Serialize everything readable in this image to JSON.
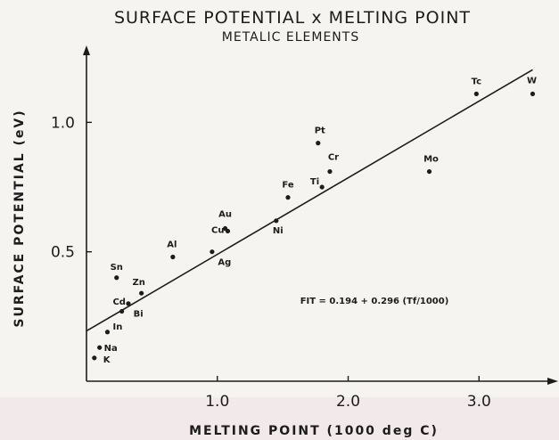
{
  "chart_data": {
    "type": "scatter",
    "title": "SURFACE POTENTIAL x MELTING POINT",
    "subtitle": "METALIC ELEMENTS",
    "xlabel": "MELTING POINT (1000 deg C)",
    "ylabel": "SURFACE POTENTIAL (eV)",
    "xlim": [
      0.0,
      3.55
    ],
    "ylim": [
      0.0,
      1.28
    ],
    "x_ticks": [
      {
        "value": 1.0,
        "label": "1.0"
      },
      {
        "value": 2.0,
        "label": "2.0"
      },
      {
        "value": 3.0,
        "label": "3.0"
      }
    ],
    "y_ticks": [
      {
        "value": 0.5,
        "label": "0.5"
      },
      {
        "value": 1.0,
        "label": "1.0"
      }
    ],
    "grid": false,
    "points": [
      {
        "label": "K",
        "x": 0.06,
        "y": 0.09
      },
      {
        "label": "Na",
        "x": 0.1,
        "y": 0.13
      },
      {
        "label": "In",
        "x": 0.16,
        "y": 0.19
      },
      {
        "label": "Sn",
        "x": 0.23,
        "y": 0.4
      },
      {
        "label": "Cd",
        "x": 0.32,
        "y": 0.3
      },
      {
        "label": "Bi",
        "x": 0.27,
        "y": 0.27
      },
      {
        "label": "Zn",
        "x": 0.42,
        "y": 0.34
      },
      {
        "label": "Al",
        "x": 0.66,
        "y": 0.48
      },
      {
        "label": "Ag",
        "x": 0.96,
        "y": 0.5
      },
      {
        "label": "Au",
        "x": 1.06,
        "y": 0.59
      },
      {
        "label": "Cu",
        "x": 1.08,
        "y": 0.58
      },
      {
        "label": "Ni",
        "x": 1.45,
        "y": 0.62
      },
      {
        "label": "Fe",
        "x": 1.54,
        "y": 0.71
      },
      {
        "label": "Pt",
        "x": 1.77,
        "y": 0.92
      },
      {
        "label": "Ti",
        "x": 1.8,
        "y": 0.75
      },
      {
        "label": "Cr",
        "x": 1.86,
        "y": 0.81
      },
      {
        "label": "Mo",
        "x": 2.62,
        "y": 0.81
      },
      {
        "label": "Tc",
        "x": 2.98,
        "y": 1.11
      },
      {
        "label": "W",
        "x": 3.41,
        "y": 1.11
      }
    ],
    "fit_line": {
      "intercept": 0.194,
      "slope": 0.296
    },
    "annotation": "FIT = 0.194 + 0.296 (Tf/1000)"
  }
}
